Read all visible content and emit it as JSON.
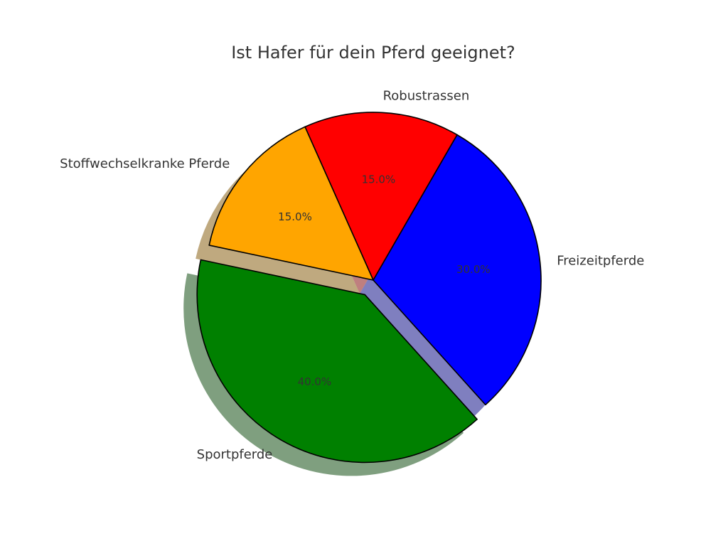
{
  "chart_data": {
    "type": "pie",
    "title": "Ist Hafer für dein Pferd geeignet?",
    "slices": [
      {
        "label": "Robustrassen",
        "value": 15.0,
        "pct_label": "15.0%",
        "color": "#ff0000",
        "exploded": false
      },
      {
        "label": "Stoffwechselkranke Pferde",
        "value": 15.0,
        "pct_label": "15.0%",
        "color": "#ffa500",
        "exploded": false
      },
      {
        "label": "Sportpferde",
        "value": 40.0,
        "pct_label": "40.0%",
        "color": "#008000",
        "exploded": true
      },
      {
        "label": "Freizeitpferde",
        "value": 30.0,
        "pct_label": "30.0%",
        "color": "#0000ff",
        "exploded": false
      }
    ],
    "legend": false
  }
}
